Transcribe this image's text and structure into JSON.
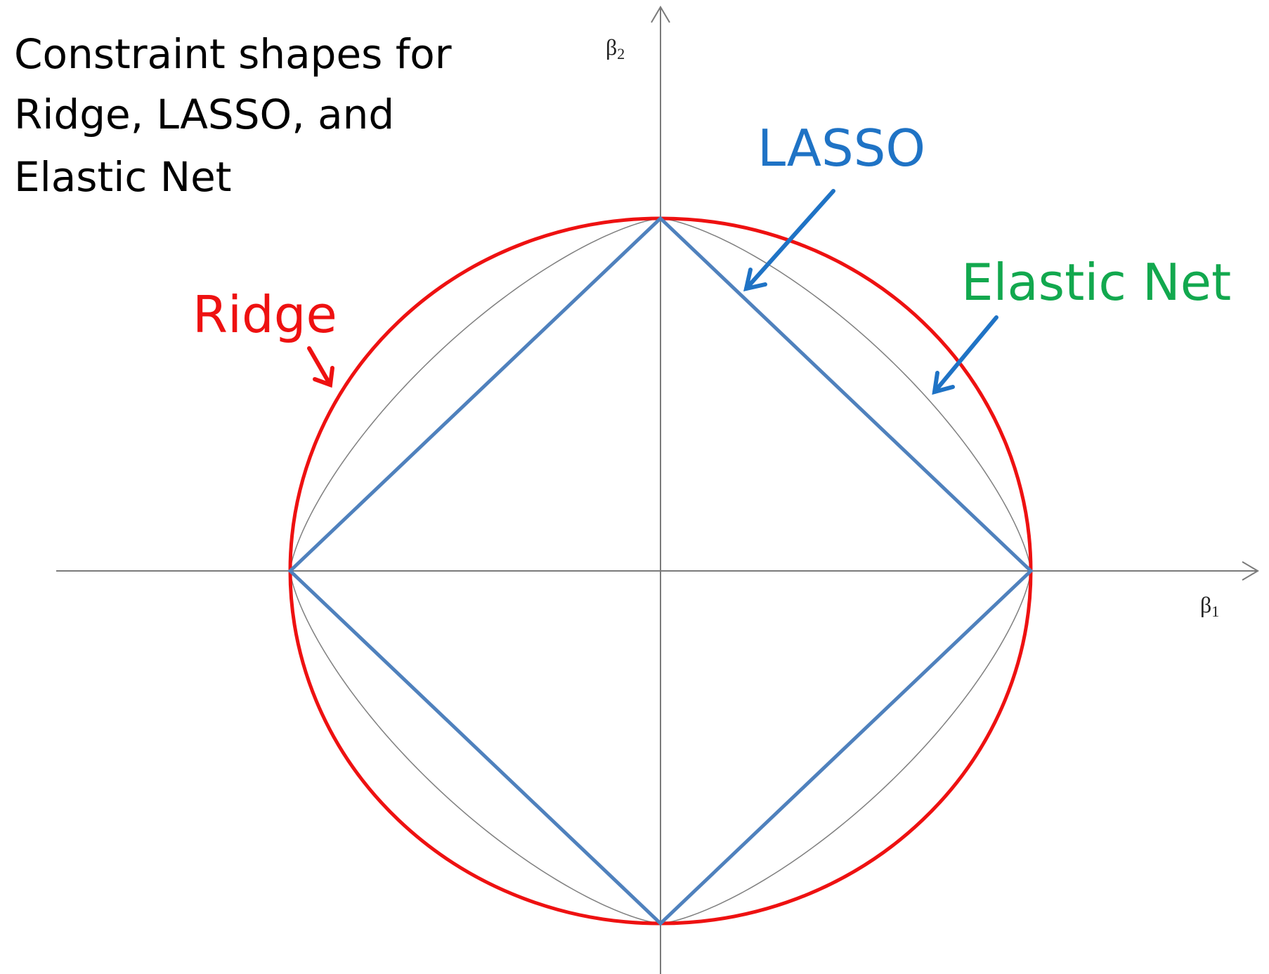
{
  "title_lines": [
    "Constraint shapes for",
    "Ridge, LASSO, and",
    "Elastic Net"
  ],
  "axes": {
    "x": {
      "symbol": "β",
      "subscript": "1"
    },
    "y": {
      "symbol": "β",
      "subscript": "2"
    }
  },
  "shapes": [
    {
      "id": "ridge",
      "label": "Ridge",
      "color": "#ee1111",
      "form": "circle"
    },
    {
      "id": "lasso",
      "label": "LASSO",
      "color": "#4f81bd",
      "label_color": "#1f73c5",
      "form": "diamond"
    },
    {
      "id": "elastic-net",
      "label": "Elastic Net",
      "color": "#7f7f7f",
      "label_color": "#12a84e",
      "form": "curved-diamond"
    }
  ],
  "colors": {
    "axis": "#7a7a7a",
    "arrow_ridge": "#ee1111",
    "arrow_lasso": "#1f73c5"
  }
}
